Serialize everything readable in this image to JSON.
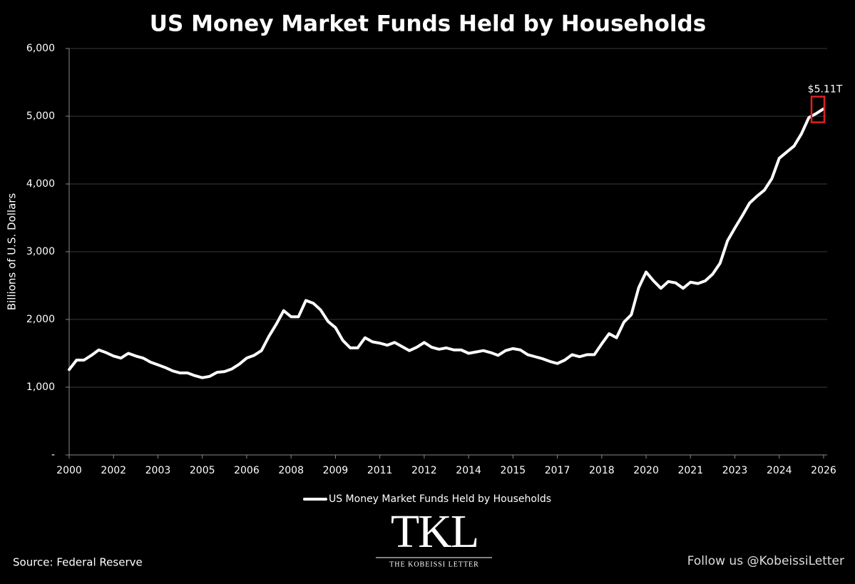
{
  "chart_data": {
    "type": "line",
    "title": "US Money Market Funds Held by Households",
    "y_label": "Billions of U.S. Dollars",
    "categories": [
      "2000",
      null,
      null,
      null,
      null,
      null,
      "2002",
      null,
      null,
      null,
      null,
      null,
      "2003",
      null,
      null,
      null,
      null,
      null,
      "2005",
      null,
      null,
      null,
      null,
      null,
      "2006",
      null,
      null,
      null,
      null,
      null,
      "2008",
      null,
      null,
      null,
      null,
      null,
      "2009",
      null,
      null,
      null,
      null,
      null,
      "2011",
      null,
      null,
      null,
      null,
      null,
      "2012",
      null,
      null,
      null,
      null,
      null,
      "2014",
      null,
      null,
      null,
      null,
      null,
      "2015",
      null,
      null,
      null,
      null,
      null,
      "2017",
      null,
      null,
      null,
      null,
      null,
      "2018",
      null,
      null,
      null,
      null,
      null,
      "2020",
      null,
      null,
      null,
      null,
      null,
      "2021",
      null,
      null,
      null,
      null,
      null,
      "2023",
      null,
      null,
      null,
      null,
      null,
      "2024",
      null,
      null,
      null,
      null,
      null,
      "2026"
    ],
    "series": [
      {
        "name": "US Money Market Funds Held by Households",
        "color": "#ffffff",
        "values": [
          1260,
          1400,
          1400,
          1470,
          1550,
          1510,
          1460,
          1430,
          1500,
          1460,
          1430,
          1370,
          1330,
          1290,
          1240,
          1210,
          1210,
          1170,
          1140,
          1160,
          1220,
          1230,
          1270,
          1340,
          1430,
          1470,
          1540,
          1750,
          1930,
          2130,
          2040,
          2040,
          2280,
          2240,
          2140,
          1970,
          1880,
          1690,
          1580,
          1580,
          1730,
          1670,
          1650,
          1620,
          1660,
          1600,
          1540,
          1590,
          1660,
          1590,
          1560,
          1580,
          1550,
          1550,
          1500,
          1520,
          1540,
          1510,
          1470,
          1540,
          1570,
          1550,
          1480,
          1450,
          1420,
          1380,
          1350,
          1400,
          1480,
          1450,
          1480,
          1480,
          1640,
          1790,
          1730,
          1960,
          2070,
          2470,
          2700,
          2570,
          2460,
          2560,
          2540,
          2460,
          2550,
          2530,
          2570,
          2670,
          2830,
          3160,
          3350,
          3530,
          3720,
          3820,
          3910,
          4080,
          4380,
          4470,
          4560,
          4740,
          4980,
          5040,
          5110
        ],
        "value_labels": [
          null,
          null,
          null,
          null,
          null,
          null,
          null,
          null,
          null,
          null,
          null,
          null,
          null,
          null,
          null,
          null,
          null,
          null,
          null,
          null,
          null,
          null,
          null,
          null,
          null,
          null,
          null,
          null,
          null,
          null,
          null,
          null,
          null,
          null,
          null,
          null,
          null,
          null,
          null,
          null,
          null,
          null,
          null,
          null,
          null,
          null,
          null,
          null,
          null,
          null,
          null,
          null,
          null,
          null,
          null,
          null,
          null,
          null,
          null,
          null,
          null,
          null,
          null,
          null,
          null,
          null,
          null,
          null,
          null,
          null,
          null,
          null,
          null,
          null,
          null,
          null,
          null,
          null,
          null,
          null,
          null,
          null,
          null,
          null,
          null,
          null,
          null,
          null,
          null,
          null,
          null,
          null,
          null,
          null,
          null,
          null,
          null,
          null,
          null,
          null,
          null,
          null,
          "$5.11T"
        ]
      }
    ],
    "ylim": [
      0,
      6000
    ],
    "yticks": [
      {
        "value": 0,
        "label": "-"
      },
      {
        "value": 1000,
        "label": "1,000"
      },
      {
        "value": 2000,
        "label": "2,000"
      },
      {
        "value": 3000,
        "label": "3,000"
      },
      {
        "value": 4000,
        "label": "4,000"
      },
      {
        "value": 5000,
        "label": "5,000"
      },
      {
        "value": 6000,
        "label": "6,000"
      }
    ],
    "grid": true,
    "legend": "bottom",
    "source": "Source: Federal Reserve",
    "footer": "Follow us @KobeissiLetter",
    "logo": {
      "text": "TKL",
      "subtitle": "THE KOBEISSI LETTER"
    }
  }
}
